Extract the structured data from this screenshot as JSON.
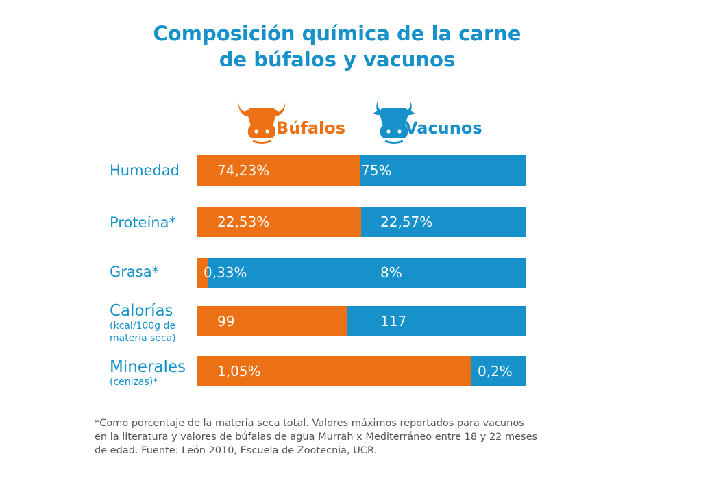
{
  "title_line1": "Composición química de la carne",
  "title_line2": "de búfalos y vacunos",
  "colors": {
    "bufalos": "#ec7115",
    "vacunos": "#1691c9",
    "title": "#1691c9"
  },
  "legend": [
    {
      "label": "Búfalos",
      "icon": "bull-head-icon",
      "color": "#ec7115"
    },
    {
      "label": "Vacunos",
      "icon": "bull-head-icon",
      "color": "#1691c9"
    }
  ],
  "chart_data": {
    "type": "bar",
    "stacked": true,
    "orientation": "horizontal",
    "categories": [
      {
        "label": "Humedad",
        "sublabel": ""
      },
      {
        "label": "Proteína*",
        "sublabel": ""
      },
      {
        "label": "Grasa*",
        "sublabel": ""
      },
      {
        "label": "Calorías",
        "sublabel": "(kcal/100g de materia seca)"
      },
      {
        "label": "Minerales",
        "sublabel": "(cenizas)*"
      }
    ],
    "series": [
      {
        "name": "Búfalos",
        "labels": [
          "74,23%",
          "22,53%",
          "0,33%",
          "99",
          "1,05%"
        ],
        "values": [
          74.23,
          22.53,
          0.33,
          99,
          1.05
        ]
      },
      {
        "name": "Vacunos",
        "labels": [
          "75%",
          "22,57%",
          "8%",
          "117",
          "0,2%"
        ],
        "values": [
          75,
          22.57,
          8,
          117,
          0.2
        ]
      }
    ],
    "bufalos_share": [
      0.495,
      0.5,
      0.035,
      0.458,
      0.835
    ]
  },
  "footnote_line1": "*Como porcentaje de la materia seca total. Valores máximos reportados para vacunos",
  "footnote_line2": "en la literatura y valores de búfalas de agua Murrah x Mediterráneo entre 18 y 22 meses",
  "footnote_line3": "de edad. Fuente: León 2010, Escuela de Zootecnia, UCR."
}
